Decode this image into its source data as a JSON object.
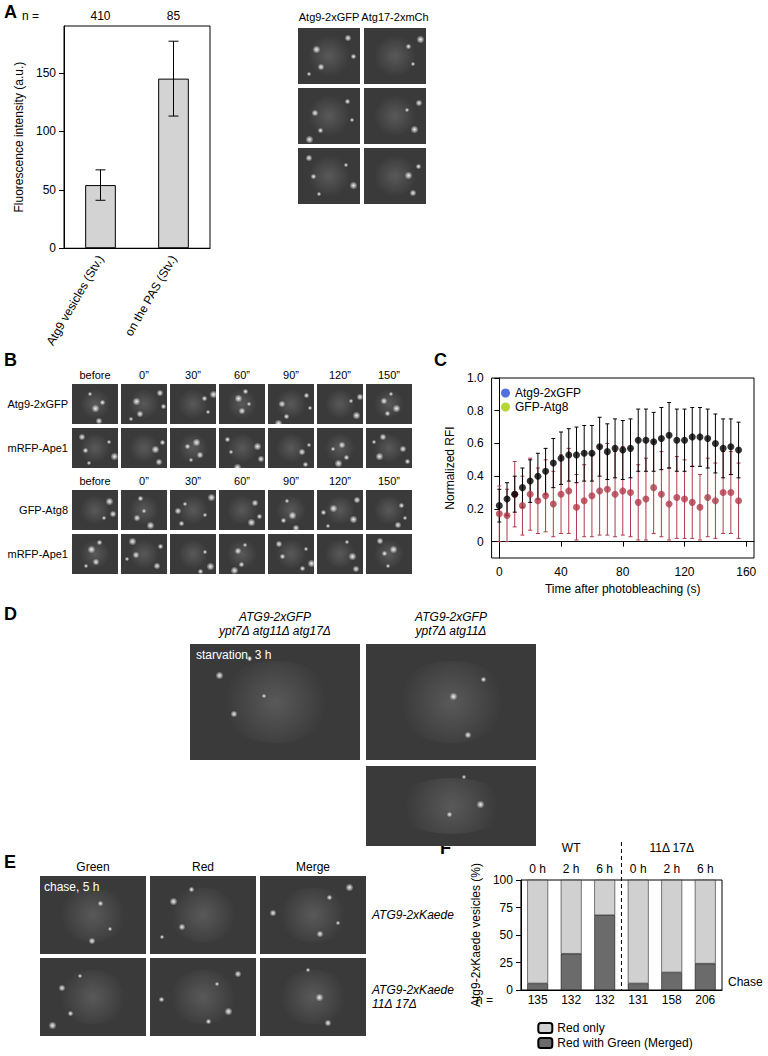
{
  "panel_labels": [
    "A",
    "B",
    "C",
    "D",
    "E",
    "F"
  ],
  "image_panels": {
    "A": {
      "columns": [
        "Atg9-2xGFP",
        "Atg17-2xmCh"
      ],
      "rows": 3
    },
    "B": {
      "timepoints": [
        "before",
        "0”",
        "30”",
        "60”",
        "90”",
        "120”",
        "150”"
      ],
      "rows": [
        [
          "Atg9-2xGFP",
          "mRFP-Ape1"
        ],
        [
          "GFP-Atg8",
          "mRFP-Ape1"
        ]
      ]
    },
    "D": {
      "columns": [
        [
          "ATG9-2xGFP",
          "ypt7Δ atg11Δ atg17Δ"
        ],
        [
          "ATG9-2xGFP",
          "ypt7Δ atg11Δ"
        ]
      ],
      "annotation": "starvation, 3 h"
    },
    "E": {
      "columns": [
        "Green",
        "Red",
        "Merge"
      ],
      "rows": [
        [
          "ATG9-2xKaede"
        ],
        [
          "ATG9-2xKaede",
          "11Δ 17Δ"
        ]
      ],
      "annotation": "chase, 5 h"
    }
  },
  "chart_data": [
    {
      "type": "bar",
      "ylabel": "Fluorescence intensity (a.u.)",
      "categories": [
        "Atg9 vesicles (Stv.)",
        "on the PAS (Stv.)"
      ],
      "values": [
        54,
        145
      ],
      "errors": [
        13,
        32
      ],
      "n_label": "n =",
      "n": [
        410,
        85
      ],
      "ylim": [
        0,
        190
      ],
      "yticks": [
        0,
        50,
        100,
        150
      ],
      "color": "#d3d3d3"
    },
    {
      "type": "scatter",
      "xlabel": "Time after photobleaching (s)",
      "ylabel": "Normalized RFI",
      "x": [
        0,
        5,
        10,
        15,
        20,
        25,
        30,
        35,
        40,
        45,
        50,
        55,
        60,
        65,
        70,
        75,
        80,
        85,
        90,
        95,
        100,
        105,
        110,
        115,
        120,
        125,
        130,
        135,
        140,
        145,
        150,
        155
      ],
      "xlim": [
        -5,
        165
      ],
      "xticks": [
        0,
        40,
        80,
        120,
        160
      ],
      "ylim": [
        -0.1,
        1.0
      ],
      "yticks": [
        0,
        {
          "value": 0.2,
          "label": "0.2"
        },
        {
          "value": 0.4,
          "label": "0.4"
        },
        {
          "value": 0.6,
          "label": "0.6"
        },
        {
          "value": 0.8,
          "label": "0.8"
        },
        {
          "value": 1.0,
          "label": "1.0"
        }
      ],
      "legend": "upper left",
      "marker": "circle",
      "series": [
        {
          "name": "Atg9-2xGFP",
          "color": "#b03a48",
          "values": [
            0.17,
            0.16,
            0.29,
            0.22,
            0.29,
            0.25,
            0.28,
            0.23,
            0.29,
            0.31,
            0.21,
            0.25,
            0.28,
            0.31,
            0.32,
            0.29,
            0.31,
            0.3,
            0.24,
            0.26,
            0.33,
            0.29,
            0.23,
            0.27,
            0.26,
            0.24,
            0.21,
            0.27,
            0.25,
            0.3,
            0.3,
            0.25
          ],
          "errors": [
            0.17,
            0.16,
            0.2,
            0.18,
            0.22,
            0.2,
            0.22,
            0.2,
            0.24,
            0.26,
            0.2,
            0.22,
            0.25,
            0.27,
            0.28,
            0.26,
            0.27,
            0.27,
            0.23,
            0.25,
            0.28,
            0.26,
            0.22,
            0.25,
            0.24,
            0.22,
            0.2,
            0.24,
            0.23,
            0.25,
            0.25,
            0.23
          ]
        },
        {
          "name": "GFP-Atg8",
          "color": "#000000",
          "values": [
            0.22,
            0.26,
            0.29,
            0.33,
            0.37,
            0.4,
            0.43,
            0.48,
            0.51,
            0.53,
            0.53,
            0.54,
            0.54,
            0.58,
            0.55,
            0.57,
            0.56,
            0.57,
            0.62,
            0.62,
            0.61,
            0.63,
            0.65,
            0.62,
            0.62,
            0.64,
            0.64,
            0.63,
            0.6,
            0.57,
            0.58,
            0.56
          ],
          "errors": [
            0.1,
            0.1,
            0.11,
            0.12,
            0.13,
            0.14,
            0.14,
            0.15,
            0.16,
            0.16,
            0.17,
            0.17,
            0.17,
            0.18,
            0.17,
            0.18,
            0.18,
            0.18,
            0.19,
            0.19,
            0.18,
            0.19,
            0.2,
            0.19,
            0.19,
            0.18,
            0.18,
            0.18,
            0.18,
            0.18,
            0.17,
            0.17
          ]
        }
      ]
    },
    {
      "type": "bar",
      "stacked": true,
      "ylabel": "Atg9-2xKaede vesicles (%)",
      "xlabel": "Chase",
      "categories": [
        "0 h",
        "2 h",
        "6 h",
        "0 h",
        "2 h",
        "6 h"
      ],
      "groups": [
        "WT",
        "WT",
        "WT",
        "11Δ 17Δ",
        "11Δ 17Δ",
        "11Δ 17Δ"
      ],
      "n_label": "n =",
      "n": [
        135,
        132,
        132,
        131,
        158,
        206
      ],
      "ylim": [
        0,
        100
      ],
      "yticks": [
        0,
        25,
        50,
        75,
        100
      ],
      "legend": "bottom",
      "series": [
        {
          "name": "Red with Green (Merged)",
          "color": "#6b6b6b",
          "values": [
            6,
            33,
            68,
            6,
            16,
            24
          ]
        },
        {
          "name": "Red only",
          "color": "#d0d0d0",
          "values": [
            94,
            67,
            32,
            94,
            84,
            76
          ]
        }
      ]
    }
  ]
}
